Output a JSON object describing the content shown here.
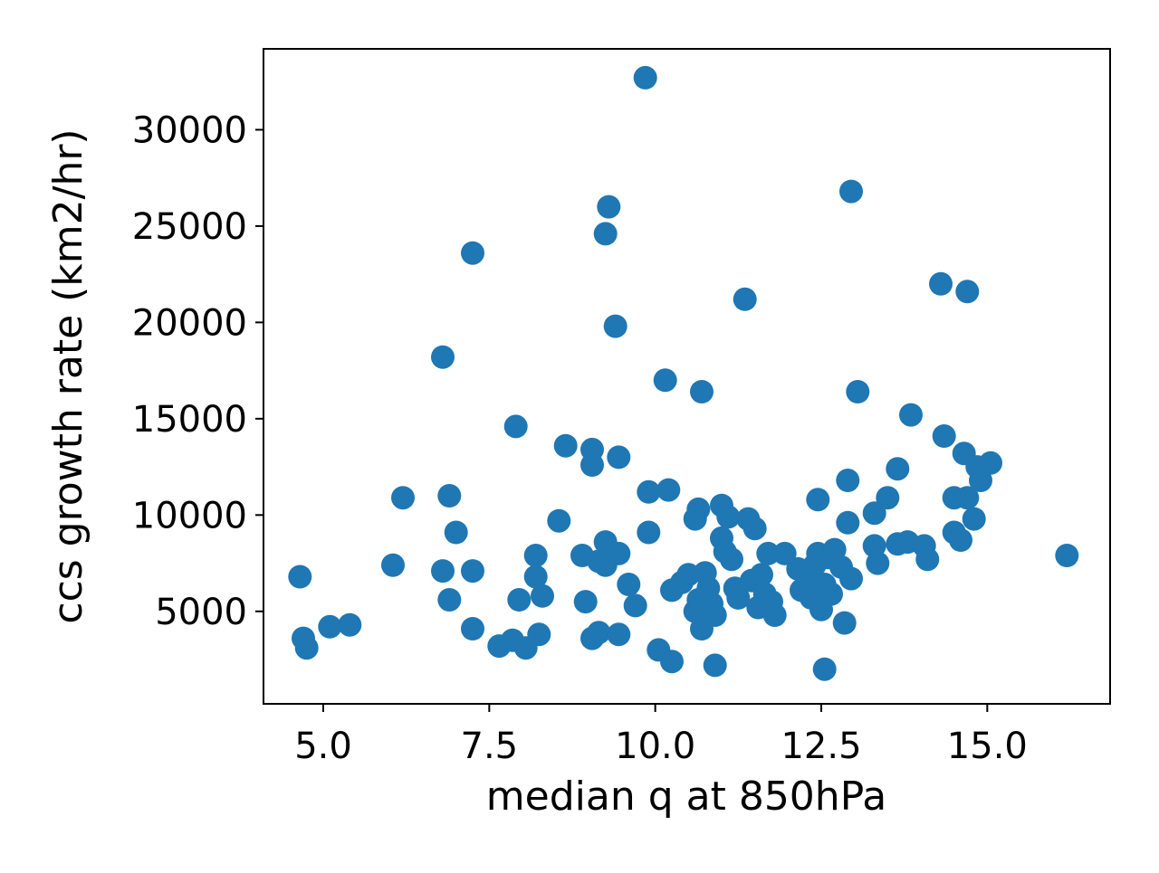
{
  "chart_data": {
    "type": "scatter",
    "title": "",
    "xlabel": "median q at 850hPa",
    "ylabel": "ccs growth rate (km2/hr)",
    "xlim": [
      4.1,
      16.85
    ],
    "ylim": [
      200,
      34200
    ],
    "xticks": [
      5.0,
      7.5,
      10.0,
      12.5,
      15.0
    ],
    "xtick_labels": [
      "5.0",
      "7.5",
      "10.0",
      "12.5",
      "15.0"
    ],
    "yticks": [
      5000,
      10000,
      15000,
      20000,
      25000,
      30000
    ],
    "ytick_labels": [
      "5000",
      "10000",
      "15000",
      "20000",
      "25000",
      "30000"
    ],
    "grid": false,
    "colors": {
      "marker": "#1f77b4"
    },
    "points": [
      [
        4.65,
        6800
      ],
      [
        4.7,
        3600
      ],
      [
        4.75,
        3100
      ],
      [
        5.1,
        4200
      ],
      [
        5.4,
        4300
      ],
      [
        6.05,
        7400
      ],
      [
        6.2,
        10900
      ],
      [
        6.8,
        18200
      ],
      [
        6.8,
        7100
      ],
      [
        6.9,
        11000
      ],
      [
        6.9,
        5600
      ],
      [
        7.0,
        9100
      ],
      [
        7.25,
        23600
      ],
      [
        7.25,
        7100
      ],
      [
        7.25,
        4100
      ],
      [
        7.65,
        3200
      ],
      [
        7.85,
        3500
      ],
      [
        7.9,
        14600
      ],
      [
        7.95,
        5600
      ],
      [
        8.05,
        3100
      ],
      [
        8.2,
        7900
      ],
      [
        8.2,
        6800
      ],
      [
        8.25,
        3800
      ],
      [
        8.3,
        5800
      ],
      [
        8.55,
        9700
      ],
      [
        8.65,
        13600
      ],
      [
        8.9,
        7900
      ],
      [
        8.95,
        5500
      ],
      [
        9.05,
        12600
      ],
      [
        9.05,
        13400
      ],
      [
        9.05,
        3600
      ],
      [
        9.15,
        3900
      ],
      [
        9.15,
        7600
      ],
      [
        9.25,
        8600
      ],
      [
        9.25,
        7400
      ],
      [
        9.25,
        24600
      ],
      [
        9.3,
        26000
      ],
      [
        9.4,
        19800
      ],
      [
        9.45,
        13000
      ],
      [
        9.45,
        3800
      ],
      [
        9.45,
        8000
      ],
      [
        9.6,
        6400
      ],
      [
        9.7,
        5300
      ],
      [
        9.85,
        32700
      ],
      [
        9.9,
        9100
      ],
      [
        9.9,
        11200
      ],
      [
        10.05,
        3000
      ],
      [
        10.15,
        17000
      ],
      [
        10.2,
        11300
      ],
      [
        10.25,
        2400
      ],
      [
        10.25,
        6100
      ],
      [
        10.4,
        6500
      ],
      [
        10.5,
        6900
      ],
      [
        10.6,
        9800
      ],
      [
        10.6,
        5000
      ],
      [
        10.65,
        10300
      ],
      [
        10.65,
        5600
      ],
      [
        10.7,
        16400
      ],
      [
        10.7,
        4100
      ],
      [
        10.75,
        7000
      ],
      [
        10.8,
        6200
      ],
      [
        10.85,
        5400
      ],
      [
        10.9,
        2200
      ],
      [
        10.9,
        4800
      ],
      [
        11.0,
        10500
      ],
      [
        11.0,
        8800
      ],
      [
        11.05,
        8100
      ],
      [
        11.1,
        9900
      ],
      [
        11.15,
        7700
      ],
      [
        11.2,
        6200
      ],
      [
        11.25,
        5700
      ],
      [
        11.35,
        21200
      ],
      [
        11.4,
        9800
      ],
      [
        11.45,
        6600
      ],
      [
        11.5,
        9300
      ],
      [
        11.55,
        5200
      ],
      [
        11.6,
        6900
      ],
      [
        11.65,
        5900
      ],
      [
        11.7,
        8000
      ],
      [
        11.75,
        5500
      ],
      [
        11.8,
        4800
      ],
      [
        11.95,
        8000
      ],
      [
        12.15,
        7200
      ],
      [
        12.2,
        6100
      ],
      [
        12.3,
        6700
      ],
      [
        12.35,
        5700
      ],
      [
        12.4,
        7400
      ],
      [
        12.45,
        10800
      ],
      [
        12.45,
        8000
      ],
      [
        12.5,
        5100
      ],
      [
        12.55,
        6400
      ],
      [
        12.55,
        2000
      ],
      [
        12.6,
        7800
      ],
      [
        12.65,
        5900
      ],
      [
        12.7,
        8200
      ],
      [
        12.8,
        7300
      ],
      [
        12.85,
        4400
      ],
      [
        12.9,
        11800
      ],
      [
        12.9,
        9600
      ],
      [
        12.95,
        26800
      ],
      [
        12.95,
        6700
      ],
      [
        13.05,
        16400
      ],
      [
        13.3,
        10100
      ],
      [
        13.3,
        8400
      ],
      [
        13.35,
        7500
      ],
      [
        13.5,
        10900
      ],
      [
        13.65,
        12400
      ],
      [
        13.65,
        8500
      ],
      [
        13.8,
        8600
      ],
      [
        13.85,
        15200
      ],
      [
        14.05,
        8400
      ],
      [
        14.1,
        7700
      ],
      [
        14.3,
        22000
      ],
      [
        14.35,
        14100
      ],
      [
        14.5,
        10900
      ],
      [
        14.5,
        9100
      ],
      [
        14.6,
        8700
      ],
      [
        14.65,
        13200
      ],
      [
        14.7,
        21600
      ],
      [
        14.7,
        10900
      ],
      [
        14.8,
        9800
      ],
      [
        14.85,
        12500
      ],
      [
        14.9,
        11800
      ],
      [
        15.05,
        12700
      ],
      [
        16.2,
        7900
      ]
    ]
  }
}
